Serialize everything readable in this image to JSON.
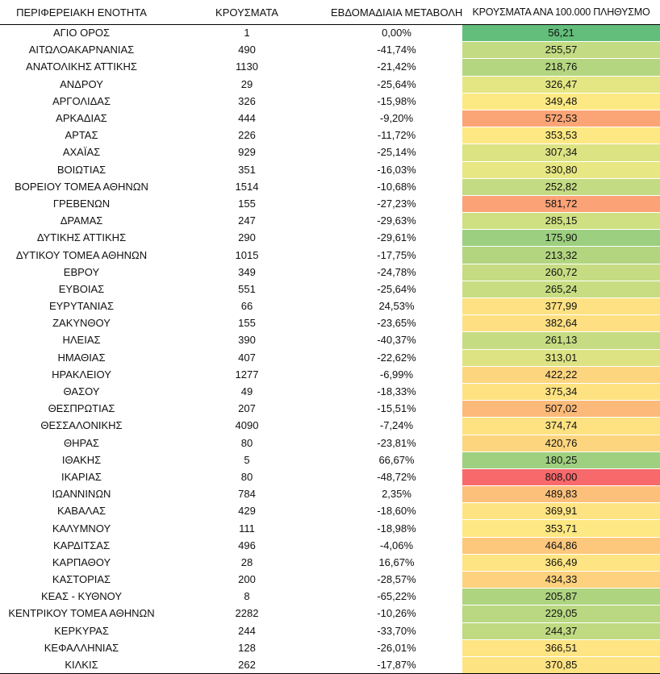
{
  "table": {
    "headers": [
      "ΠΕΡΙΦΕΡΕΙΑΚΗ ΕΝΟΤΗΤΑ",
      "ΚΡΟΥΣΜΑΤΑ",
      "ΕΒΔΟΜΑΔΙΑΙΑ ΜΕΤΑΒΟΛΗ",
      "ΚΡΟΥΣΜΑΤΑ ΑΝΑ 100.000 ΠΛΗΘΥΣΜΟ"
    ],
    "rows": [
      {
        "unit": "ΑΓΙΟ ΟΡΟΣ",
        "cases": "1",
        "change": "0,00%",
        "rate": "56,21",
        "color": "#63be7b"
      },
      {
        "unit": "ΑΙΤΩΛΟΑΚΑΡΝΑΝΙΑΣ",
        "cases": "490",
        "change": "-41,74%",
        "rate": "255,57",
        "color": "#c3db82"
      },
      {
        "unit": "ΑΝΑΤΟΛΙΚΗΣ ΑΤΤΙΚΗΣ",
        "cases": "1130",
        "change": "-21,42%",
        "rate": "218,76",
        "color": "#b5d680"
      },
      {
        "unit": "ΑΝΔΡΟΥ",
        "cases": "29",
        "change": "-25,64%",
        "rate": "326,47",
        "color": "#e4e683"
      },
      {
        "unit": "ΑΡΓΟΛΙΔΑΣ",
        "cases": "326",
        "change": "-15,98%",
        "rate": "349,48",
        "color": "#fde983"
      },
      {
        "unit": "ΑΡΚΑΔΙΑΣ",
        "cases": "444",
        "change": "-9,20%",
        "rate": "572,53",
        "color": "#fba576"
      },
      {
        "unit": "ΑΡΤΑΣ",
        "cases": "226",
        "change": "-11,72%",
        "rate": "353,53",
        "color": "#fee883"
      },
      {
        "unit": "ΑΧΑΪΑΣ",
        "cases": "929",
        "change": "-25,14%",
        "rate": "307,34",
        "color": "#dbe383"
      },
      {
        "unit": "ΒΟΙΩΤΙΑΣ",
        "cases": "351",
        "change": "-16,03%",
        "rate": "330,80",
        "color": "#e7e783"
      },
      {
        "unit": "ΒΟΡΕΙΟΥ ΤΟΜΕΑ ΑΘΗΝΩΝ",
        "cases": "1514",
        "change": "-10,68%",
        "rate": "252,82",
        "color": "#c3db82"
      },
      {
        "unit": "ΓΡΕΒΕΝΩΝ",
        "cases": "155",
        "change": "-27,23%",
        "rate": "581,72",
        "color": "#fba276"
      },
      {
        "unit": "ΔΡΑΜΑΣ",
        "cases": "247",
        "change": "-29,63%",
        "rate": "285,15",
        "color": "#cfe082"
      },
      {
        "unit": "ΔΥΤΙΚΗΣ ΑΤΤΙΚΗΣ",
        "cases": "290",
        "change": "-29,61%",
        "rate": "175,90",
        "color": "#9ccf7f"
      },
      {
        "unit": "ΔΥΤΙΚΟΥ ΤΟΜΕΑ ΑΘΗΝΩΝ",
        "cases": "1015",
        "change": "-17,75%",
        "rate": "213,32",
        "color": "#b3d580"
      },
      {
        "unit": "ΕΒΡΟΥ",
        "cases": "349",
        "change": "-24,78%",
        "rate": "260,72",
        "color": "#c5dc82"
      },
      {
        "unit": "ΕΥΒΟΙΑΣ",
        "cases": "551",
        "change": "-25,64%",
        "rate": "265,24",
        "color": "#c8dd82"
      },
      {
        "unit": "ΕΥΡΥΤΑΝΙΑΣ",
        "cases": "66",
        "change": "24,53%",
        "rate": "377,99",
        "color": "#fee182"
      },
      {
        "unit": "ΖΑΚΥΝΘΟΥ",
        "cases": "155",
        "change": "-23,65%",
        "rate": "382,64",
        "color": "#fee082"
      },
      {
        "unit": "ΗΛΕΙΑΣ",
        "cases": "390",
        "change": "-40,37%",
        "rate": "261,13",
        "color": "#c5dc82"
      },
      {
        "unit": "ΗΜΑΘΙΑΣ",
        "cases": "407",
        "change": "-22,62%",
        "rate": "313,01",
        "color": "#dde383"
      },
      {
        "unit": "ΗΡΑΚΛΕΙΟΥ",
        "cases": "1277",
        "change": "-6,99%",
        "rate": "422,22",
        "color": "#fdd57f"
      },
      {
        "unit": "ΘΑΣΟΥ",
        "cases": "49",
        "change": "-18,33%",
        "rate": "375,34",
        "color": "#fee282"
      },
      {
        "unit": "ΘΕΣΠΡΩΤΙΑΣ",
        "cases": "207",
        "change": "-15,51%",
        "rate": "507,02",
        "color": "#fcba7a"
      },
      {
        "unit": "ΘΕΣΣΑΛΟΝΙΚΗΣ",
        "cases": "4090",
        "change": "-7,24%",
        "rate": "374,74",
        "color": "#fee282"
      },
      {
        "unit": "ΘΗΡΑΣ",
        "cases": "80",
        "change": "-23,81%",
        "rate": "420,76",
        "color": "#fdd57f"
      },
      {
        "unit": "ΙΘΑΚΗΣ",
        "cases": "5",
        "change": "66,67%",
        "rate": "180,25",
        "color": "#9fd07f"
      },
      {
        "unit": "ΙΚΑΡΙΑΣ",
        "cases": "80",
        "change": "-48,72%",
        "rate": "808,00",
        "color": "#f8696b"
      },
      {
        "unit": "ΙΩΑΝΝΙΝΩΝ",
        "cases": "784",
        "change": "2,35%",
        "rate": "489,83",
        "color": "#fcc07b"
      },
      {
        "unit": "ΚΑΒΑΛΑΣ",
        "cases": "429",
        "change": "-18,60%",
        "rate": "369,91",
        "color": "#fee382"
      },
      {
        "unit": "ΚΑΛΥΜΝΟΥ",
        "cases": "111",
        "change": "-18,98%",
        "rate": "353,71",
        "color": "#fee883"
      },
      {
        "unit": "ΚΑΡΔΙΤΣΑΣ",
        "cases": "496",
        "change": "-4,06%",
        "rate": "464,86",
        "color": "#fdc87c"
      },
      {
        "unit": "ΚΑΡΠΑΘΟΥ",
        "cases": "28",
        "change": "16,67%",
        "rate": "366,49",
        "color": "#fee482"
      },
      {
        "unit": "ΚΑΣΤΟΡΙΑΣ",
        "cases": "200",
        "change": "-28,57%",
        "rate": "434,33",
        "color": "#fdd17e"
      },
      {
        "unit": "ΚΕΑΣ - ΚΥΘΝΟΥ",
        "cases": "8",
        "change": "-65,22%",
        "rate": "205,87",
        "color": "#afd480"
      },
      {
        "unit": "ΚΕΝΤΡΙΚΟΥ ΤΟΜΕΑ ΑΘΗΝΩΝ",
        "cases": "2282",
        "change": "-10,26%",
        "rate": "229,05",
        "color": "#b9d881"
      },
      {
        "unit": "ΚΕΡΚΥΡΑΣ",
        "cases": "244",
        "change": "-33,70%",
        "rate": "244,37",
        "color": "#bfda81"
      },
      {
        "unit": "ΚΕΦΑΛΛΗΝΙΑΣ",
        "cases": "128",
        "change": "-26,01%",
        "rate": "366,51",
        "color": "#fee482"
      },
      {
        "unit": "ΚΙΛΚΙΣ",
        "cases": "262",
        "change": "-17,87%",
        "rate": "370,85",
        "color": "#fee382"
      }
    ]
  }
}
